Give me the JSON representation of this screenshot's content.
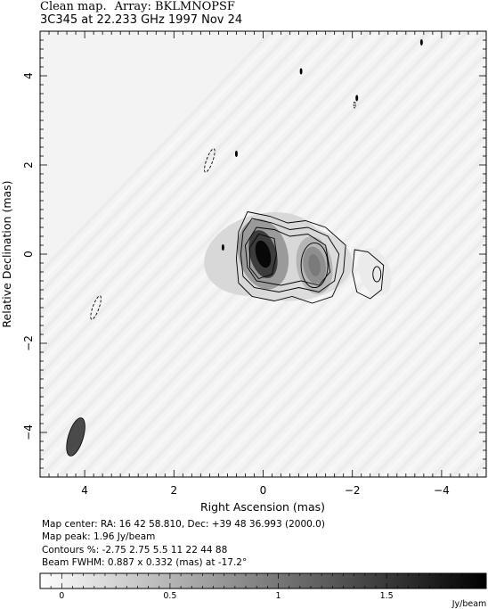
{
  "header": {
    "line1_prefix": "Clean map.",
    "line1_suffix": "Array: BKLMNOPSF",
    "line2": "3C345 at 22.233 GHz 1997 Nov 24"
  },
  "info": {
    "map_center": "Map center:  RA: 16 42 58.810,  Dec: +39 48 36.993 (2000.0)",
    "map_peak": "Map peak: 1.96 Jy/beam",
    "contours": "Contours %: -2.75 2.75 5.5 11 22 44 88",
    "beam": "Beam FWHM: 0.887 x 0.332 (mas) at -17.2°"
  },
  "chart_data": {
    "type": "heatmap",
    "title": "Clean map.  Array: BKLMNOPSF",
    "subtitle": "3C345 at 22.233 GHz 1997 Nov 24",
    "xlabel": "Right Ascension   (mas)",
    "ylabel": "Relative Declination   (mas)",
    "xlim": [
      5,
      -5
    ],
    "ylim": [
      -5,
      5
    ],
    "x_ticks": [
      4,
      2,
      0,
      -2,
      -4
    ],
    "x_tick_labels": [
      "4",
      "2",
      "0",
      "−2",
      "−4"
    ],
    "y_ticks": [
      -4,
      -2,
      0,
      2,
      4
    ],
    "y_tick_labels": [
      "−4",
      "−2",
      "0",
      "2",
      "4"
    ],
    "map_peak_jy_per_beam": 1.96,
    "contour_levels_percent": [
      -2.75,
      2.75,
      5.5,
      11,
      22,
      44,
      88
    ],
    "components": [
      {
        "x": 0.0,
        "y": 0.0,
        "peak_jy_per_beam": 1.96
      },
      {
        "x": -1.15,
        "y": -0.25,
        "peak_jy_per_beam": 0.8
      },
      {
        "x": -2.5,
        "y": -0.4,
        "peak_jy_per_beam": 0.05
      }
    ],
    "beam": {
      "x": 4.2,
      "y": -4.1,
      "major_mas": 0.887,
      "minor_mas": 0.332,
      "pa_deg": -17.2
    },
    "colorbar": {
      "min": -0.1,
      "max": 1.96,
      "ticks": [
        0,
        0.5,
        1,
        1.5
      ],
      "tick_labels": [
        "0",
        "0.5",
        "1",
        "1.5"
      ],
      "unit": "Jy/beam"
    },
    "grid": false
  }
}
